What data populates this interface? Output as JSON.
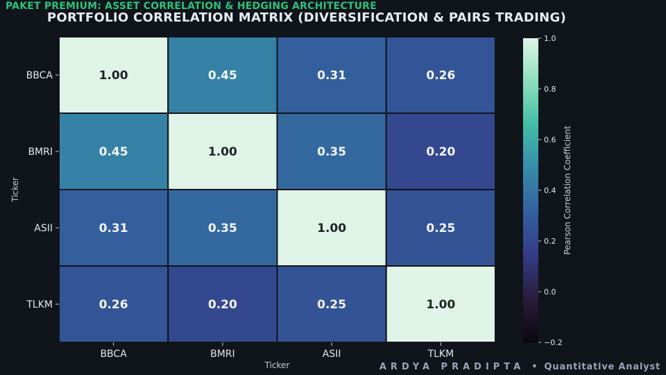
{
  "header": {
    "banner": "PAKET PREMIUM: ASSET CORRELATION & HEDGING ARCHITECTURE"
  },
  "footer": {
    "name": "ARDYA PRADIPTA",
    "separator": "•",
    "role": "Quantitative Analyst"
  },
  "chart_data": {
    "type": "heatmap",
    "title": "PORTFOLIO CORRELATION MATRIX (DIVERSIFICATION & PAIRS TRADING)",
    "xlabel": "Ticker",
    "ylabel": "Ticker",
    "x_categories": [
      "BBCA",
      "BMRI",
      "ASII",
      "TLKM"
    ],
    "y_categories": [
      "BBCA",
      "BMRI",
      "ASII",
      "TLKM"
    ],
    "values": [
      [
        1.0,
        0.45,
        0.31,
        0.26
      ],
      [
        0.45,
        1.0,
        0.35,
        0.2
      ],
      [
        0.31,
        0.35,
        1.0,
        0.25
      ],
      [
        0.26,
        0.2,
        0.25,
        1.0
      ]
    ],
    "colorbar": {
      "label": "Pearson Correlation Coefficient",
      "range": [
        -0.2,
        1.0
      ],
      "ticks": [
        "1.0",
        "0.8",
        "0.6",
        "0.4",
        "0.2",
        "0.0",
        "−0.2"
      ],
      "tick_values": [
        1.0,
        0.8,
        0.6,
        0.4,
        0.2,
        0.0,
        -0.2
      ]
    },
    "colormap_stops": [
      "#0a0710",
      "#2b1c3c",
      "#343c87",
      "#33609e",
      "#378ba9",
      "#42bca7",
      "#8ddfbb",
      "#dff4e6"
    ]
  }
}
